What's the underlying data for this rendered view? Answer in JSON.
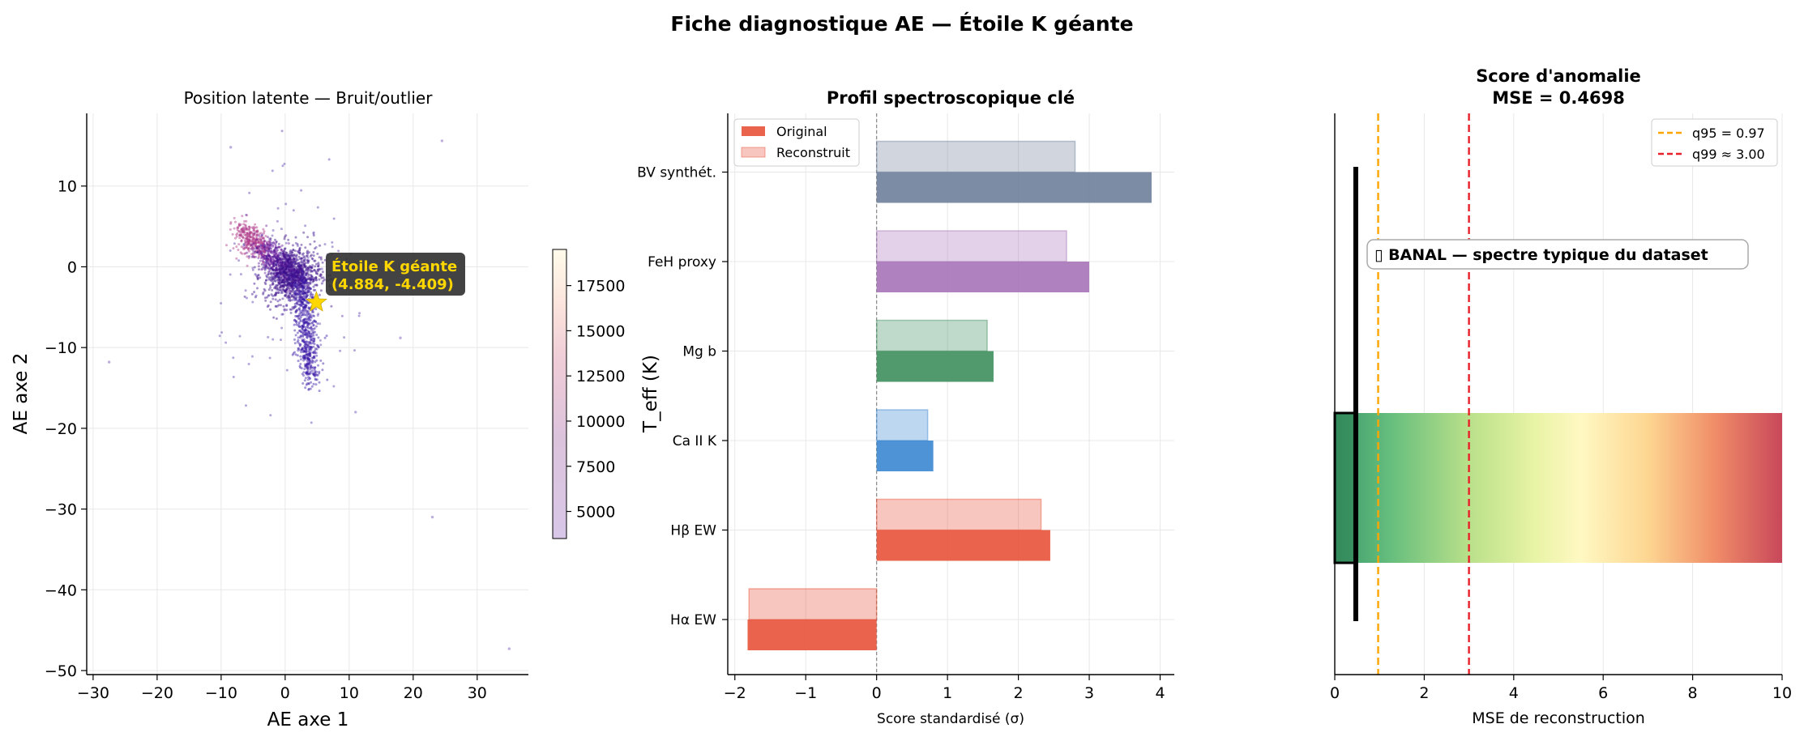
{
  "figure": {
    "suptitle": "Fiche diagnostique AE — Étoile K géante"
  },
  "colors": {
    "star": "#FFD700",
    "annotation_bg": "#333333",
    "q95": "#FFA500",
    "q99": "#E8202A",
    "marker_line": "#000000"
  },
  "chart_data": [
    {
      "type": "scatter",
      "title": "Position latente — Bruit/outlier",
      "xlabel": "AE axe 1",
      "ylabel": "AE axe 2",
      "xlim": [
        -31,
        38
      ],
      "ylim": [
        -50.5,
        19
      ],
      "xticks": [
        -30,
        -20,
        -10,
        0,
        10,
        20,
        30
      ],
      "xtick_labels": [
        "−30",
        "−20",
        "−10",
        "0",
        "10",
        "20",
        "30"
      ],
      "yticks": [
        10,
        0,
        -10,
        -20,
        -30,
        -40,
        -50
      ],
      "ytick_labels": [
        "10",
        "0",
        "−10",
        "−20",
        "−30",
        "−40",
        "−50"
      ],
      "grid": true,
      "colormap": "magma-like (dark purple → cream)",
      "colorbar": {
        "label": "T_eff (K)",
        "range": [
          3500,
          19500
        ],
        "ticks": [
          5000,
          7500,
          10000,
          12500,
          15000,
          17500
        ],
        "tick_labels": [
          "5000",
          "7500",
          "10000",
          "12500",
          "15000",
          "17500"
        ]
      },
      "main_cluster": {
        "description": "dense cloud of several thousand points",
        "approx_x_range": [
          -8,
          9
        ],
        "approx_y_range": [
          -18,
          7
        ]
      },
      "outliers": [
        {
          "x": -8.5,
          "y": 14.8
        },
        {
          "x": 24.5,
          "y": 15.6
        },
        {
          "x": -27.5,
          "y": -11.8
        },
        {
          "x": 23,
          "y": -31
        },
        {
          "x": 35,
          "y": -47.3
        },
        {
          "x": 18,
          "y": -8.8
        },
        {
          "x": 11,
          "y": -18
        }
      ],
      "highlight": {
        "x": 4.884,
        "y": -4.409,
        "marker": "star",
        "label_line1": "Étoile K géante",
        "label_line2": "(4.884, -4.409)"
      }
    },
    {
      "type": "bar",
      "orientation": "horizontal",
      "title": "Profil spectroscopique clé",
      "xlabel": "Score standardisé (σ)",
      "ylabel": "",
      "xlim": [
        -2.1,
        4.2
      ],
      "xticks": [
        -2,
        -1,
        0,
        1,
        2,
        3,
        4
      ],
      "xtick_labels": [
        "−2",
        "−1",
        "0",
        "1",
        "2",
        "3",
        "4"
      ],
      "grid": true,
      "legend_position": "top-left",
      "categories": [
        "Hα EW",
        "Hβ EW",
        "Ca II K",
        "Mg b",
        "FeH proxy",
        "BV synthét."
      ],
      "category_colors": [
        "#E8523A",
        "#E8523A",
        "#3A87D2",
        "#3E8F5E",
        "#A673B8",
        "#6F809B"
      ],
      "series": [
        {
          "name": "Original",
          "values": [
            -1.82,
            2.45,
            0.8,
            1.65,
            3.0,
            3.88
          ]
        },
        {
          "name": "Reconstruit",
          "values": [
            -1.8,
            2.32,
            0.72,
            1.56,
            2.68,
            2.8
          ]
        }
      ]
    },
    {
      "type": "bar",
      "orientation": "horizontal",
      "title_line1": "Score d'anomalie",
      "title_line2": "MSE = 0.4698",
      "xlabel": "MSE de reconstruction",
      "xlim": [
        0,
        10
      ],
      "xticks": [
        0,
        2,
        4,
        6,
        8,
        10
      ],
      "xtick_labels": [
        "0",
        "2",
        "4",
        "6",
        "8",
        "10"
      ],
      "grid": true,
      "legend_position": "top-right",
      "value": 0.4698,
      "gradient": "green → yellow → red (RdYlGn reversed)",
      "thresholds": [
        {
          "name": "q95 = 0.97",
          "value": 0.97,
          "style": "dashed"
        },
        {
          "name": "q99 ≈ 3.00",
          "value": 3.0,
          "style": "dashed"
        }
      ],
      "verdict": "▯ BANAL — spectre typique du dataset"
    }
  ]
}
